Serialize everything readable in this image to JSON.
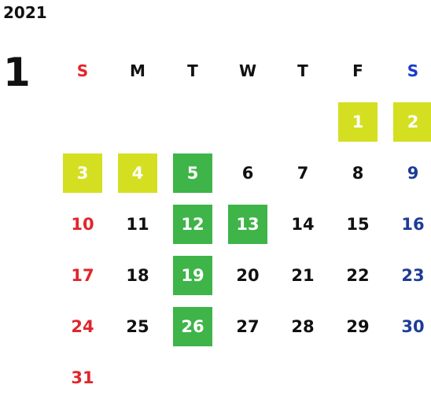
{
  "calendar": {
    "year": "2021",
    "month": "1",
    "weekdays": [
      "S",
      "M",
      "T",
      "W",
      "T",
      "F",
      "S"
    ],
    "first_weekday_index": 5,
    "days": [
      {
        "d": "1",
        "hl": "yellow"
      },
      {
        "d": "2",
        "hl": "yellow"
      },
      {
        "d": "3",
        "hl": "yellow"
      },
      {
        "d": "4",
        "hl": "yellow"
      },
      {
        "d": "5",
        "hl": "green"
      },
      {
        "d": "6",
        "hl": ""
      },
      {
        "d": "7",
        "hl": ""
      },
      {
        "d": "8",
        "hl": ""
      },
      {
        "d": "9",
        "hl": ""
      },
      {
        "d": "10",
        "hl": ""
      },
      {
        "d": "11",
        "hl": ""
      },
      {
        "d": "12",
        "hl": "green"
      },
      {
        "d": "13",
        "hl": "green"
      },
      {
        "d": "14",
        "hl": ""
      },
      {
        "d": "15",
        "hl": ""
      },
      {
        "d": "16",
        "hl": ""
      },
      {
        "d": "17",
        "hl": ""
      },
      {
        "d": "18",
        "hl": ""
      },
      {
        "d": "19",
        "hl": "green"
      },
      {
        "d": "20",
        "hl": ""
      },
      {
        "d": "21",
        "hl": ""
      },
      {
        "d": "22",
        "hl": ""
      },
      {
        "d": "23",
        "hl": ""
      },
      {
        "d": "24",
        "hl": ""
      },
      {
        "d": "25",
        "hl": ""
      },
      {
        "d": "26",
        "hl": "green"
      },
      {
        "d": "27",
        "hl": ""
      },
      {
        "d": "28",
        "hl": ""
      },
      {
        "d": "29",
        "hl": ""
      },
      {
        "d": "30",
        "hl": ""
      },
      {
        "d": "31",
        "hl": ""
      }
    ]
  },
  "colors": {
    "sunday": "#e0262c",
    "saturday": "#1e3c96",
    "highlight_yellow": "#d4df22",
    "highlight_green": "#3eb449"
  }
}
